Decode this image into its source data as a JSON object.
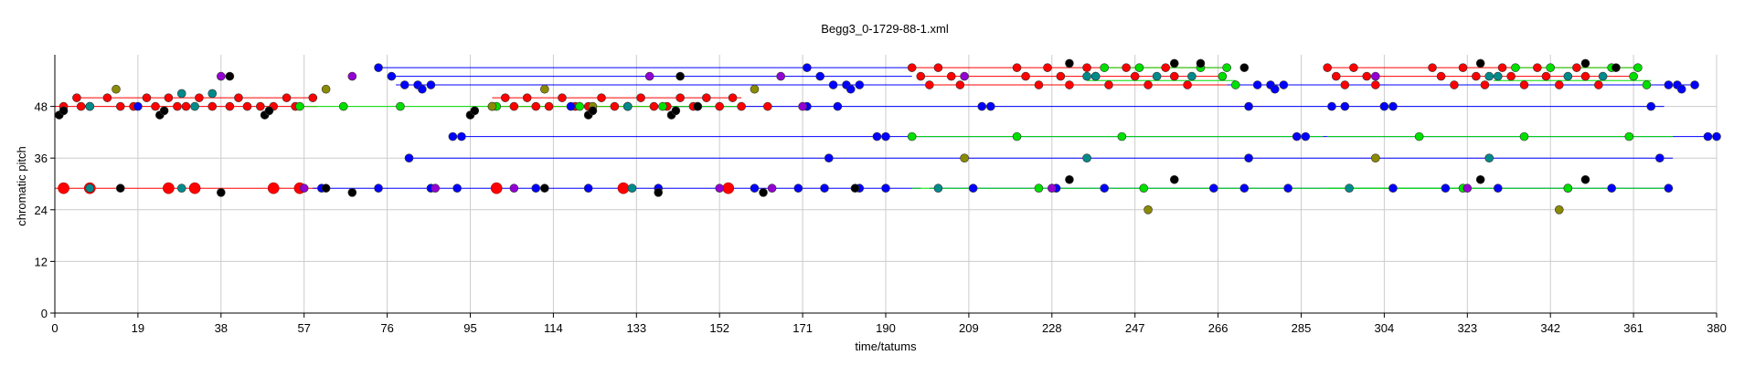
{
  "chart_data": {
    "type": "scatter",
    "title": "Begg3_0-1729-88-1.xml",
    "xlabel": "time/tatums",
    "ylabel": "chromatic pitch",
    "xlim": [
      0,
      380
    ],
    "ylim": [
      0,
      60
    ],
    "xticks": [
      0,
      19,
      38,
      57,
      76,
      95,
      114,
      133,
      152,
      171,
      190,
      209,
      228,
      247,
      266,
      285,
      304,
      323,
      342,
      361,
      380
    ],
    "yticks": [
      0,
      12,
      24,
      36,
      48
    ],
    "grid": true,
    "colors": {
      "red": "#ff0000",
      "blue": "#0000ff",
      "green": "#00e000",
      "teal": "#008b8b",
      "olive": "#8b8b00",
      "purple": "#9400d3",
      "black": "#000000"
    },
    "hlines": [
      {
        "color": "red",
        "x1": 0,
        "x2": 60,
        "y": 48
      },
      {
        "color": "red",
        "x1": 5,
        "x2": 60,
        "y": 50
      },
      {
        "color": "red",
        "x1": 0,
        "x2": 60,
        "y": 29
      },
      {
        "color": "red",
        "x1": 100,
        "x2": 157,
        "y": 48
      },
      {
        "color": "red",
        "x1": 100,
        "x2": 157,
        "y": 50
      },
      {
        "color": "red",
        "x1": 196,
        "x2": 268,
        "y": 57
      },
      {
        "color": "red",
        "x1": 198,
        "x2": 268,
        "y": 55
      },
      {
        "color": "red",
        "x1": 200,
        "x2": 268,
        "y": 53
      },
      {
        "color": "red",
        "x1": 291,
        "x2": 362,
        "y": 57
      },
      {
        "color": "red",
        "x1": 293,
        "x2": 362,
        "y": 55
      },
      {
        "color": "red",
        "x1": 295,
        "x2": 362,
        "y": 53
      },
      {
        "color": "blue",
        "x1": 59,
        "x2": 198,
        "y": 29
      },
      {
        "color": "blue",
        "x1": 74,
        "x2": 196,
        "y": 57
      },
      {
        "color": "blue",
        "x1": 76,
        "x2": 196,
        "y": 55
      },
      {
        "color": "blue",
        "x1": 78,
        "x2": 200,
        "y": 53
      },
      {
        "color": "blue",
        "x1": 91,
        "x2": 380,
        "y": 41
      },
      {
        "color": "blue",
        "x1": 80,
        "x2": 370,
        "y": 36
      },
      {
        "color": "blue",
        "x1": 200,
        "x2": 370,
        "y": 29
      },
      {
        "color": "blue",
        "x1": 140,
        "x2": 368,
        "y": 48
      },
      {
        "color": "blue",
        "x1": 268,
        "x2": 375,
        "y": 53
      },
      {
        "color": "green",
        "x1": 55,
        "x2": 157,
        "y": 48
      },
      {
        "color": "green",
        "x1": 196,
        "x2": 290,
        "y": 41
      },
      {
        "color": "green",
        "x1": 291,
        "x2": 370,
        "y": 41
      },
      {
        "color": "green",
        "x1": 196,
        "x2": 325,
        "y": 29
      },
      {
        "color": "green",
        "x1": 291,
        "x2": 370,
        "y": 29
      },
      {
        "color": "green",
        "x1": 240,
        "x2": 268,
        "y": 57
      },
      {
        "color": "green",
        "x1": 334,
        "x2": 362,
        "y": 57
      },
      {
        "color": "green",
        "x1": 236,
        "x2": 270,
        "y": 54
      },
      {
        "color": "green",
        "x1": 329,
        "x2": 365,
        "y": 54
      }
    ],
    "series": [
      {
        "name": "",
        "color": "red",
        "points": [
          [
            2,
            48
          ],
          [
            5,
            50
          ],
          [
            6,
            48
          ],
          [
            8,
            48
          ],
          [
            12,
            50
          ],
          [
            15,
            48
          ],
          [
            18,
            48
          ],
          [
            21,
            50
          ],
          [
            23,
            48
          ],
          [
            26,
            50
          ],
          [
            28,
            48
          ],
          [
            30,
            48
          ],
          [
            33,
            50
          ],
          [
            36,
            48
          ],
          [
            40,
            48
          ],
          [
            42,
            50
          ],
          [
            44,
            48
          ],
          [
            47,
            48
          ],
          [
            50,
            48
          ],
          [
            53,
            50
          ],
          [
            55,
            48
          ],
          [
            59,
            50
          ],
          [
            100,
            48
          ],
          [
            103,
            50
          ],
          [
            105,
            48
          ],
          [
            108,
            50
          ],
          [
            110,
            48
          ],
          [
            113,
            48
          ],
          [
            116,
            50
          ],
          [
            119,
            48
          ],
          [
            122,
            48
          ],
          [
            125,
            50
          ],
          [
            128,
            48
          ],
          [
            131,
            48
          ],
          [
            134,
            50
          ],
          [
            137,
            48
          ],
          [
            140,
            48
          ],
          [
            143,
            50
          ],
          [
            146,
            48
          ],
          [
            149,
            50
          ],
          [
            152,
            48
          ],
          [
            155,
            50
          ],
          [
            157,
            48
          ],
          [
            163,
            48
          ],
          [
            196,
            57
          ],
          [
            198,
            55
          ],
          [
            200,
            53
          ],
          [
            202,
            57
          ],
          [
            205,
            55
          ],
          [
            207,
            53
          ],
          [
            220,
            57
          ],
          [
            222,
            55
          ],
          [
            225,
            53
          ],
          [
            227,
            57
          ],
          [
            230,
            55
          ],
          [
            232,
            53
          ],
          [
            236,
            57
          ],
          [
            238,
            55
          ],
          [
            241,
            53
          ],
          [
            245,
            57
          ],
          [
            247,
            55
          ],
          [
            250,
            53
          ],
          [
            254,
            57
          ],
          [
            256,
            55
          ],
          [
            259,
            53
          ],
          [
            291,
            57
          ],
          [
            293,
            55
          ],
          [
            295,
            53
          ],
          [
            297,
            57
          ],
          [
            300,
            55
          ],
          [
            302,
            53
          ],
          [
            315,
            57
          ],
          [
            317,
            55
          ],
          [
            320,
            53
          ],
          [
            322,
            57
          ],
          [
            325,
            55
          ],
          [
            327,
            53
          ],
          [
            331,
            57
          ],
          [
            333,
            55
          ],
          [
            336,
            53
          ],
          [
            339,
            57
          ],
          [
            341,
            55
          ],
          [
            344,
            53
          ],
          [
            348,
            57
          ],
          [
            350,
            55
          ],
          [
            353,
            53
          ]
        ]
      },
      {
        "name": "",
        "color": "red-big",
        "points": [
          [
            2,
            29
          ],
          [
            8,
            29
          ],
          [
            26,
            29
          ],
          [
            32,
            29
          ],
          [
            50,
            29
          ],
          [
            56,
            29
          ],
          [
            101,
            29
          ],
          [
            130,
            29
          ],
          [
            154,
            29
          ]
        ]
      },
      {
        "name": "",
        "color": "blue",
        "points": [
          [
            19,
            48
          ],
          [
            61,
            29
          ],
          [
            74,
            29
          ],
          [
            86,
            29
          ],
          [
            92,
            29
          ],
          [
            110,
            29
          ],
          [
            122,
            29
          ],
          [
            138,
            29
          ],
          [
            160,
            29
          ],
          [
            170,
            29
          ],
          [
            176,
            29
          ],
          [
            184,
            29
          ],
          [
            190,
            29
          ],
          [
            74,
            57
          ],
          [
            77,
            55
          ],
          [
            80,
            53
          ],
          [
            83,
            53
          ],
          [
            84,
            52
          ],
          [
            86,
            53
          ],
          [
            91,
            41
          ],
          [
            93,
            41
          ],
          [
            81,
            36
          ],
          [
            118,
            48
          ],
          [
            172,
            48
          ],
          [
            179,
            48
          ],
          [
            172,
            57
          ],
          [
            175,
            55
          ],
          [
            178,
            53
          ],
          [
            181,
            53
          ],
          [
            182,
            52
          ],
          [
            184,
            53
          ],
          [
            188,
            41
          ],
          [
            190,
            41
          ],
          [
            177,
            36
          ],
          [
            212,
            48
          ],
          [
            214,
            48
          ],
          [
            273,
            48
          ],
          [
            275,
            53
          ],
          [
            278,
            53
          ],
          [
            279,
            52
          ],
          [
            281,
            53
          ],
          [
            284,
            41
          ],
          [
            286,
            41
          ],
          [
            273,
            36
          ],
          [
            292,
            48
          ],
          [
            295,
            48
          ],
          [
            304,
            48
          ],
          [
            306,
            48
          ],
          [
            365,
            48
          ],
          [
            369,
            53
          ],
          [
            371,
            53
          ],
          [
            372,
            52
          ],
          [
            375,
            53
          ],
          [
            378,
            41
          ],
          [
            380,
            41
          ],
          [
            367,
            36
          ],
          [
            210,
            29
          ],
          [
            229,
            29
          ],
          [
            240,
            29
          ],
          [
            265,
            29
          ],
          [
            272,
            29
          ],
          [
            282,
            29
          ],
          [
            306,
            29
          ],
          [
            318,
            29
          ],
          [
            330,
            29
          ],
          [
            346,
            29
          ],
          [
            356,
            29
          ],
          [
            369,
            29
          ]
        ]
      },
      {
        "name": "",
        "color": "green",
        "points": [
          [
            56,
            48
          ],
          [
            66,
            48
          ],
          [
            79,
            48
          ],
          [
            101,
            48
          ],
          [
            120,
            48
          ],
          [
            131,
            48
          ],
          [
            139,
            48
          ],
          [
            147,
            48
          ],
          [
            196,
            41
          ],
          [
            220,
            41
          ],
          [
            244,
            41
          ],
          [
            312,
            41
          ],
          [
            336,
            41
          ],
          [
            360,
            41
          ],
          [
            225,
            29
          ],
          [
            249,
            29
          ],
          [
            322,
            29
          ],
          [
            346,
            29
          ],
          [
            240,
            57
          ],
          [
            248,
            57
          ],
          [
            262,
            57
          ],
          [
            268,
            57
          ],
          [
            334,
            57
          ],
          [
            342,
            57
          ],
          [
            356,
            57
          ],
          [
            362,
            57
          ],
          [
            267,
            55
          ],
          [
            270,
            53
          ],
          [
            361,
            55
          ],
          [
            364,
            53
          ]
        ]
      },
      {
        "name": "",
        "color": "teal",
        "points": [
          [
            8,
            29
          ],
          [
            8,
            48
          ],
          [
            29,
            29
          ],
          [
            29,
            51
          ],
          [
            32,
            48
          ],
          [
            36,
            51
          ],
          [
            132,
            29
          ],
          [
            131,
            48
          ],
          [
            236,
            36
          ],
          [
            236,
            55
          ],
          [
            238,
            55
          ],
          [
            260,
            55
          ],
          [
            252,
            55
          ],
          [
            328,
            36
          ],
          [
            328,
            55
          ],
          [
            330,
            55
          ],
          [
            346,
            55
          ],
          [
            354,
            55
          ],
          [
            202,
            29
          ],
          [
            296,
            29
          ]
        ]
      },
      {
        "name": "",
        "color": "olive",
        "points": [
          [
            14,
            52
          ],
          [
            62,
            52
          ],
          [
            100,
            48
          ],
          [
            112,
            52
          ],
          [
            123,
            48
          ],
          [
            160,
            52
          ],
          [
            208,
            36
          ],
          [
            250,
            24
          ],
          [
            302,
            36
          ],
          [
            344,
            24
          ]
        ]
      },
      {
        "name": "",
        "color": "purple",
        "points": [
          [
            38,
            55
          ],
          [
            57,
            29
          ],
          [
            68,
            55
          ],
          [
            87,
            29
          ],
          [
            105,
            29
          ],
          [
            136,
            55
          ],
          [
            152,
            29
          ],
          [
            164,
            29
          ],
          [
            166,
            55
          ],
          [
            171,
            48
          ],
          [
            208,
            55
          ],
          [
            228,
            29
          ],
          [
            302,
            55
          ],
          [
            323,
            29
          ]
        ]
      },
      {
        "name": "",
        "color": "black",
        "points": [
          [
            1,
            46
          ],
          [
            2,
            47
          ],
          [
            15,
            29
          ],
          [
            24,
            46
          ],
          [
            25,
            47
          ],
          [
            38,
            28
          ],
          [
            40,
            55
          ],
          [
            48,
            46
          ],
          [
            49,
            47
          ],
          [
            62,
            29
          ],
          [
            68,
            28
          ],
          [
            95,
            46
          ],
          [
            96,
            47
          ],
          [
            112,
            29
          ],
          [
            122,
            46
          ],
          [
            123,
            47
          ],
          [
            138,
            28
          ],
          [
            141,
            46
          ],
          [
            142,
            47
          ],
          [
            143,
            55
          ],
          [
            147,
            48
          ],
          [
            162,
            28
          ],
          [
            183,
            29
          ],
          [
            232,
            31
          ],
          [
            232,
            58
          ],
          [
            256,
            31
          ],
          [
            256,
            58
          ],
          [
            262,
            58
          ],
          [
            272,
            57
          ],
          [
            326,
            31
          ],
          [
            326,
            58
          ],
          [
            350,
            31
          ],
          [
            350,
            58
          ],
          [
            357,
            57
          ]
        ]
      }
    ]
  }
}
